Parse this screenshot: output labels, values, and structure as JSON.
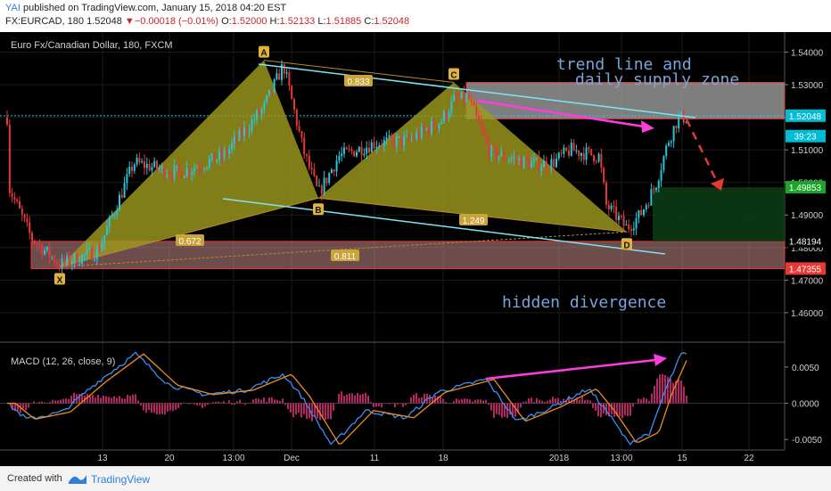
{
  "header": {
    "publisher": "YAI",
    "published_text": "published on TradingView.com, January 15, 2018 04:20 EST",
    "symbol_interval": "FX:EURCAD, 180",
    "last_price": "1.52048",
    "change_arrow": "▼",
    "change": "−0.00018 (−0.01%)",
    "open_label": "O:",
    "open": "1.52000",
    "high_label": "H:",
    "high": "1.52133",
    "low_label": "L:",
    "low": "1.51885",
    "close_label": "C:",
    "close": "1.52048"
  },
  "colors": {
    "background": "#000000",
    "bull_candle": "#26c6da",
    "bear_candle": "#e53935",
    "pattern_fill": "#9e9a1e",
    "trend_line": "#7fe3f3",
    "supply_zone": "#a8a8a8",
    "demand_zone": "#c78a8a",
    "target_zone": "#0b3a14",
    "magenta": "#ff3ddf",
    "annotation_text": "#7aa4d8",
    "macd_line": "#3d8ff0",
    "signal_line": "#f08a1e",
    "histogram": "#e0307a"
  },
  "chart_data": {
    "type": "candlestick",
    "title": "Euro Fx/Canadian Dollar, 180, FXCM",
    "ylim": [
      1.4515,
      1.5445
    ],
    "price_ticks": [
      "1.54000",
      "1.53000",
      "1.52000",
      "1.51000",
      "1.50000",
      "1.49000",
      "1.48000",
      "1.47000",
      "1.46000"
    ],
    "x_ticks": [
      "13",
      "20",
      "13:00",
      "Dec",
      "11",
      "18",
      "2018",
      "13:00",
      "15",
      "22"
    ],
    "price_labels": [
      {
        "text": "1.52048",
        "value": 1.52048,
        "color": "#00bcd4"
      },
      {
        "text": "39:23",
        "value": 1.5186,
        "color": "#00bcd4"
      },
      {
        "text": "1.49853",
        "value": 1.49853,
        "color": "#1aa728"
      },
      {
        "text": "1.48194",
        "value": 1.48194,
        "color": "#000000"
      },
      {
        "text": "1.47355",
        "value": 1.47355,
        "color": "#e53935"
      }
    ],
    "pattern_points": [
      {
        "label": "X",
        "price": 1.4741
      },
      {
        "label": "A",
        "price": 1.5375
      },
      {
        "label": "B",
        "price": 1.4952
      },
      {
        "label": "C",
        "price": 1.5307
      },
      {
        "label": "D",
        "price": 1.4848
      }
    ],
    "ratios": [
      "0.833",
      "0.672",
      "1.249",
      "0.811"
    ],
    "annotations": [
      "trend line  and",
      "daily supply zone",
      "hidden divergence"
    ],
    "macd": {
      "title": "MACD (12, 26, close, 9)",
      "ylim": [
        -0.0062,
        0.0083
      ],
      "ticks": [
        "0.0050",
        "0.0000",
        "-0.0050"
      ]
    }
  },
  "footer": {
    "created_with": "Created with",
    "brand": "TradingView"
  }
}
